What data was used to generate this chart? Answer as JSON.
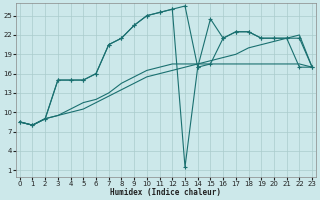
{
  "xlabel": "Humidex (Indice chaleur)",
  "bg_color": "#cce8ea",
  "grid_color": "#aacccc",
  "line_color": "#1a7070",
  "line1_x": [
    0,
    1,
    2,
    3,
    4,
    5,
    6,
    7,
    8,
    9,
    10,
    11,
    12,
    13,
    14,
    15,
    16,
    17,
    18,
    19,
    20,
    21,
    22,
    23
  ],
  "line1_y": [
    8.5,
    8.0,
    9.0,
    9.5,
    10.0,
    10.5,
    11.5,
    12.5,
    13.5,
    14.5,
    15.5,
    16.0,
    16.5,
    17.0,
    17.5,
    18.0,
    18.5,
    19.0,
    20.0,
    20.5,
    21.0,
    21.5,
    22.0,
    17.0
  ],
  "line2_x": [
    0,
    1,
    2,
    3,
    4,
    5,
    6,
    7,
    8,
    9,
    10,
    11,
    12,
    13,
    14,
    15,
    16,
    17,
    18,
    19,
    20,
    21,
    22,
    23
  ],
  "line2_y": [
    8.5,
    8.0,
    9.0,
    9.5,
    10.5,
    11.5,
    12.0,
    13.0,
    14.5,
    15.5,
    16.5,
    17.0,
    17.5,
    17.5,
    17.5,
    17.5,
    17.5,
    17.5,
    17.5,
    17.5,
    17.5,
    17.5,
    17.5,
    17.0
  ],
  "line3_x": [
    0,
    1,
    2,
    3,
    4,
    5,
    6,
    7,
    8,
    9,
    10,
    11,
    12,
    13,
    14,
    15,
    16,
    17,
    18,
    19,
    20,
    21,
    22,
    23
  ],
  "line3_y": [
    8.5,
    8.0,
    9.0,
    15.0,
    15.0,
    15.0,
    16.0,
    20.5,
    21.5,
    23.5,
    25.0,
    25.5,
    26.0,
    26.5,
    17.0,
    17.5,
    21.5,
    22.5,
    22.5,
    21.5,
    21.5,
    21.5,
    21.5,
    17.0
  ],
  "line4_x": [
    0,
    1,
    2,
    3,
    4,
    5,
    6,
    7,
    8,
    9,
    10,
    11,
    12,
    13,
    14,
    15,
    16,
    17,
    18,
    19,
    20,
    21,
    22,
    23
  ],
  "line4_y": [
    8.5,
    8.0,
    9.0,
    15.0,
    15.0,
    15.0,
    16.0,
    20.5,
    21.5,
    23.5,
    25.0,
    25.5,
    26.0,
    1.5,
    17.0,
    24.5,
    21.5,
    22.5,
    22.5,
    21.5,
    21.5,
    21.5,
    17.0,
    17.0
  ],
  "ylim": [
    0,
    27
  ],
  "xlim": [
    -0.3,
    23.3
  ],
  "yticks": [
    1,
    4,
    7,
    10,
    13,
    16,
    19,
    22,
    25
  ],
  "xticks": [
    0,
    1,
    2,
    3,
    4,
    5,
    6,
    7,
    8,
    9,
    10,
    11,
    12,
    13,
    14,
    15,
    16,
    17,
    18,
    19,
    20,
    21,
    22,
    23
  ]
}
